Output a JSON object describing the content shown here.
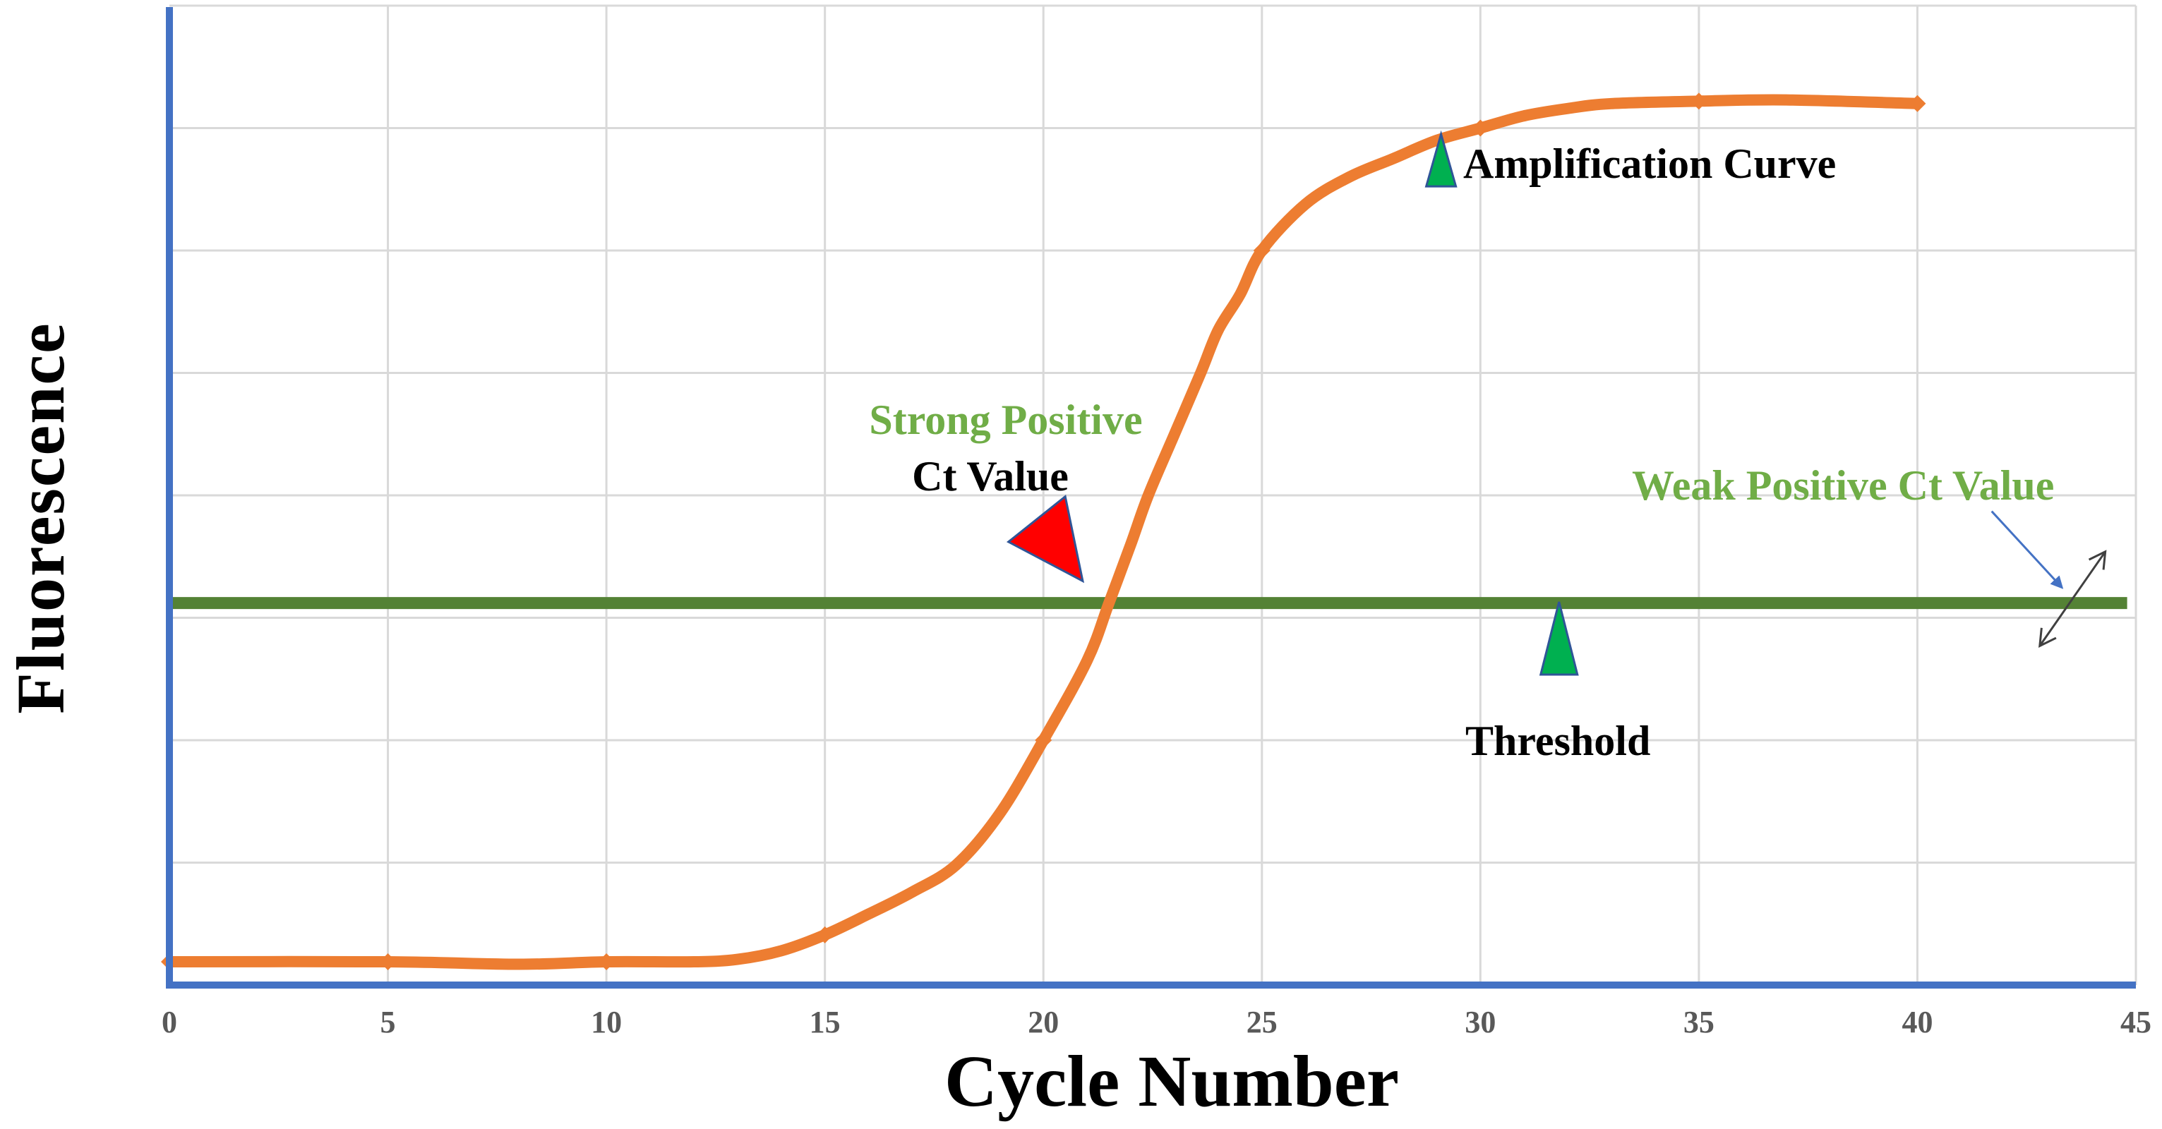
{
  "chart_data": {
    "type": "line",
    "title": "",
    "xlabel": "Cycle Number",
    "ylabel": "Fluorescence",
    "xlim": [
      0,
      45
    ],
    "ylim": [
      0,
      8
    ],
    "x_ticks": [
      0,
      5,
      10,
      15,
      20,
      25,
      30,
      35,
      40,
      45
    ],
    "x_tick_labels": [
      "0",
      "5",
      "10",
      "15",
      "20",
      "25",
      "30",
      "35",
      "40",
      "45"
    ],
    "y_gridlines": [
      1,
      2,
      3,
      4,
      5,
      6,
      7,
      8
    ],
    "y_tick_labels": [],
    "grid": true,
    "legend": "none",
    "series": [
      {
        "name": "Amplification Curve",
        "color": "#ed7d31",
        "x": [
          0,
          5,
          8,
          10,
          12,
          13,
          14,
          15,
          16,
          17,
          18,
          19,
          20,
          21,
          21.5,
          22,
          22.4,
          23,
          23.6,
          24,
          24.5,
          25,
          26,
          27,
          28,
          29,
          30,
          31,
          32,
          33,
          35,
          37,
          40
        ],
        "y": [
          0.19,
          0.19,
          0.17,
          0.19,
          0.19,
          0.21,
          0.28,
          0.41,
          0.58,
          0.76,
          0.98,
          1.4,
          2.0,
          2.65,
          3.12,
          3.6,
          4.0,
          4.5,
          5.0,
          5.35,
          5.64,
          6.0,
          6.38,
          6.6,
          6.75,
          6.9,
          7.0,
          7.1,
          7.16,
          7.2,
          7.22,
          7.23,
          7.2
        ]
      }
    ],
    "threshold": {
      "name": "Threshold",
      "y": 3.12,
      "x_range": [
        0,
        44.8
      ],
      "color": "#548235"
    },
    "annotations": [
      {
        "id": "amplification",
        "text": "Amplification Curve",
        "color": "#000000",
        "x": 29.3,
        "y": 6.55,
        "marker": "green-triangle",
        "marker_x": 29.1,
        "marker_y": 6.95
      },
      {
        "id": "strong",
        "lines": [
          "Strong Positive",
          "Ct Value"
        ],
        "colors": [
          "#70ad47",
          "#000000"
        ],
        "x": 19.2,
        "y": 4.6,
        "marker": "red-triangle",
        "marker_points": [
          [
            20.5,
            3.99
          ],
          [
            19.2,
            3.62
          ],
          [
            20.9,
            3.3
          ]
        ]
      },
      {
        "id": "threshold",
        "text": "Threshold",
        "color": "#000000",
        "x": 30.5,
        "y": 1.87,
        "marker": "green-triangle",
        "marker_x": 31.8,
        "marker_y": 3.13
      },
      {
        "id": "weak",
        "text": "Weak Positive Ct Value",
        "color": "#70ad47",
        "x": 33.5,
        "y": 3.97
      }
    ],
    "arrows": [
      {
        "name": "weak-pointer-arrow",
        "color": "#4472c4",
        "from": [
          41.7,
          3.87
        ],
        "to": [
          43.3,
          3.25
        ],
        "heads": "end"
      },
      {
        "name": "threshold-adjust-arrow",
        "color": "#404040",
        "from": [
          42.8,
          2.77
        ],
        "to": [
          44.3,
          3.54
        ],
        "heads": "both"
      }
    ],
    "colors": {
      "axis": "#4472c4",
      "grid": "#d9d9d9",
      "curve": "#ed7d31",
      "threshold": "#548235",
      "marker_green": "#00b050",
      "marker_red": "#ff0000",
      "marker_outline": "#2f5597",
      "label_green": "#70ad47",
      "tick_label": "#595959"
    }
  }
}
